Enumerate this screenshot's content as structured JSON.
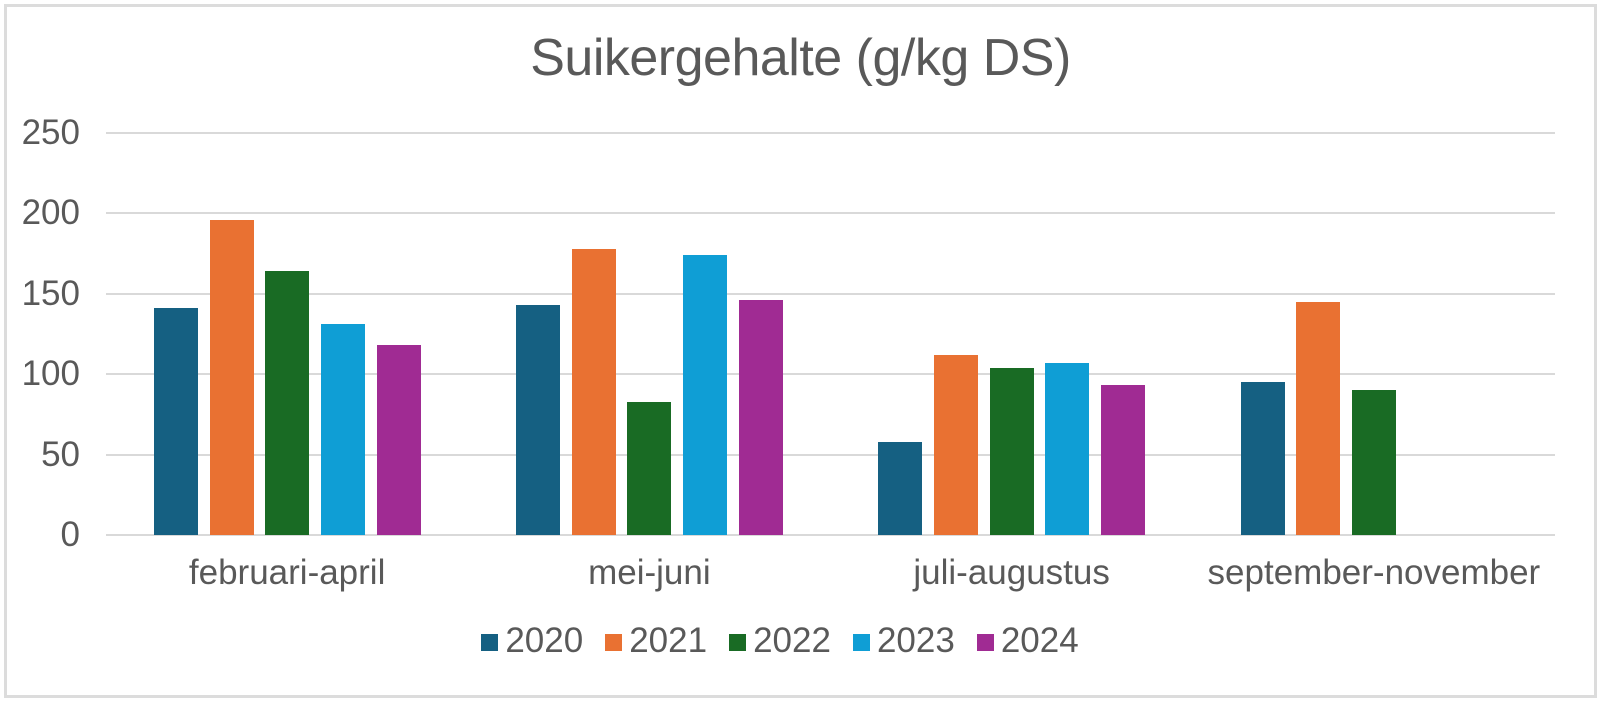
{
  "chart_data": {
    "type": "bar",
    "title": "Suikergehalte (g/kg DS)",
    "xlabel": "",
    "ylabel": "",
    "categories": [
      "februari-april",
      "mei-juni",
      "juli-augustus",
      "september-november"
    ],
    "series": [
      {
        "name": "2020",
        "color": "#156082",
        "values": [
          141,
          143,
          58,
          95
        ]
      },
      {
        "name": "2021",
        "color": "#E97132",
        "values": [
          196,
          178,
          112,
          145
        ]
      },
      {
        "name": "2022",
        "color": "#196B24",
        "values": [
          164,
          83,
          104,
          90
        ]
      },
      {
        "name": "2023",
        "color": "#0F9ED5",
        "values": [
          131,
          174,
          107,
          null
        ]
      },
      {
        "name": "2024",
        "color": "#A02B93",
        "values": [
          118,
          146,
          93,
          null
        ]
      }
    ],
    "y_axis": {
      "min": 0,
      "max": 250,
      "ticks": [
        250,
        200,
        150,
        100,
        50,
        0
      ]
    },
    "grid": true,
    "legend_position": "bottom"
  },
  "style": {
    "text_color": "#595959",
    "gridline_color": "#D9D9D9",
    "border_color": "#DCDCDC",
    "background": "#FFFFFF"
  }
}
